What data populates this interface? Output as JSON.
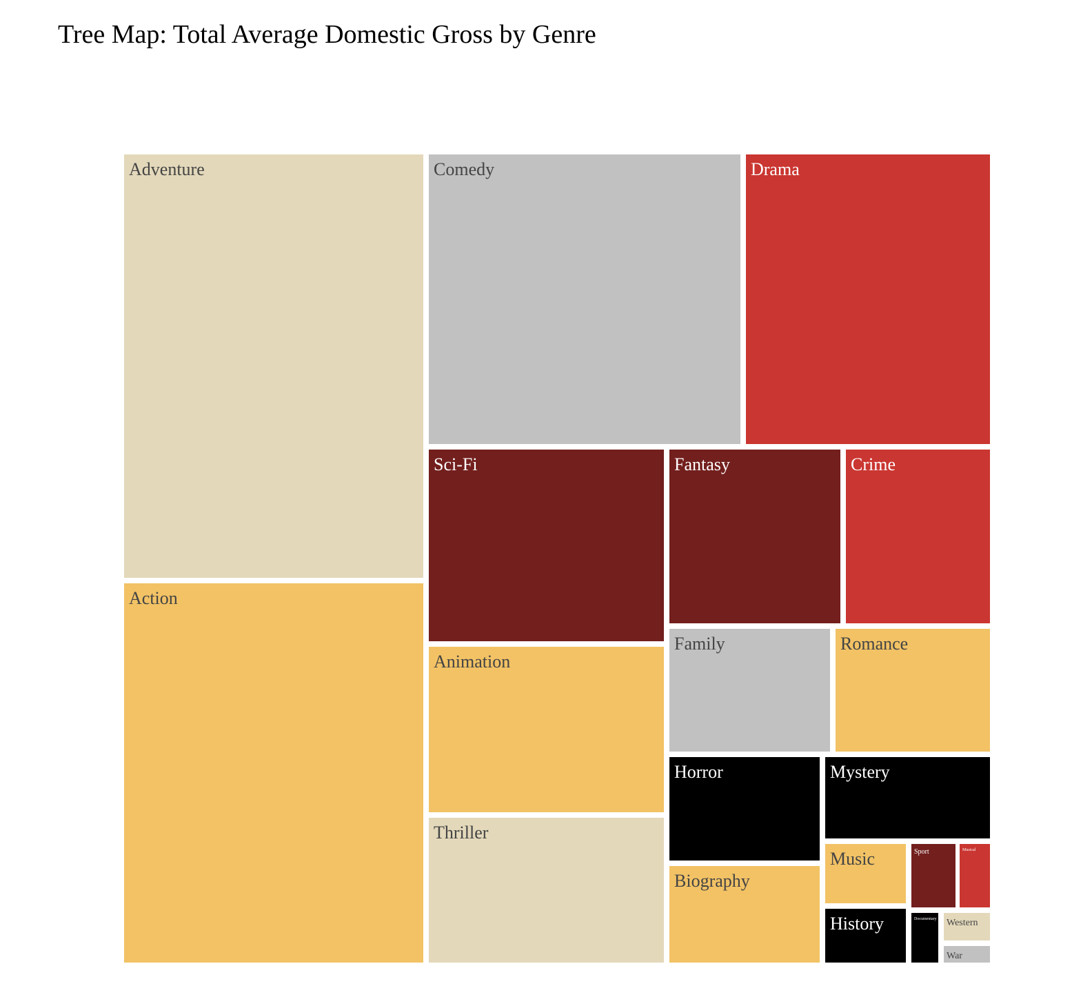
{
  "chart_data": {
    "type": "treemap",
    "title": "Tree Map: Total Average Domestic Gross by Genre",
    "palette": {
      "tan": "#e3d8ba",
      "gold": "#f2c265",
      "gray": "#c0c1c0",
      "red": "#ca3631",
      "dark_red": "#721f1d",
      "black": "#000000",
      "light_label": "#ffffff",
      "dark_label": "#444444"
    },
    "nodes": [
      {
        "label": "Adventure",
        "value": 43.9,
        "color": "#e3d8ba"
      },
      {
        "label": "Action",
        "value": 39.6,
        "color": "#f2c265"
      },
      {
        "label": "Comedy",
        "value": 29.1,
        "color": "#c0c1c0"
      },
      {
        "label": "Drama",
        "value": 22.6,
        "color": "#ca3631"
      },
      {
        "label": "Sci-Fi",
        "value": 14.4,
        "color": "#721f1d"
      },
      {
        "label": "Animation",
        "value": 12.4,
        "color": "#f2c265"
      },
      {
        "label": "Thriller",
        "value": 11.1,
        "color": "#e3d8ba"
      },
      {
        "label": "Fantasy",
        "value": 9.5,
        "color": "#721f1d"
      },
      {
        "label": "Crime",
        "value": 8.1,
        "color": "#ca3631"
      },
      {
        "label": "Family",
        "value": 6.8,
        "color": "#c0c1c0"
      },
      {
        "label": "Romance",
        "value": 6.5,
        "color": "#f2c265"
      },
      {
        "label": "Horror",
        "value": 4.4,
        "color": "#000000"
      },
      {
        "label": "Biography",
        "value": 4.1,
        "color": "#f2c265"
      },
      {
        "label": "Mystery",
        "value": 4.2,
        "color": "#000000"
      },
      {
        "label": "Music",
        "value": 1.4,
        "color": "#f2c265"
      },
      {
        "label": "Sport",
        "value": 0.8,
        "color": "#721f1d"
      },
      {
        "label": "Musical",
        "value": 0.65,
        "color": "#ca3631"
      },
      {
        "label": "History",
        "value": 1.3,
        "color": "#000000"
      },
      {
        "label": "Documentary",
        "value": 0.4,
        "color": "#000000"
      },
      {
        "label": "Western",
        "value": 0.45,
        "color": "#e3d8ba"
      },
      {
        "label": "War",
        "value": 0.35,
        "color": "#c0c1c0"
      }
    ]
  }
}
